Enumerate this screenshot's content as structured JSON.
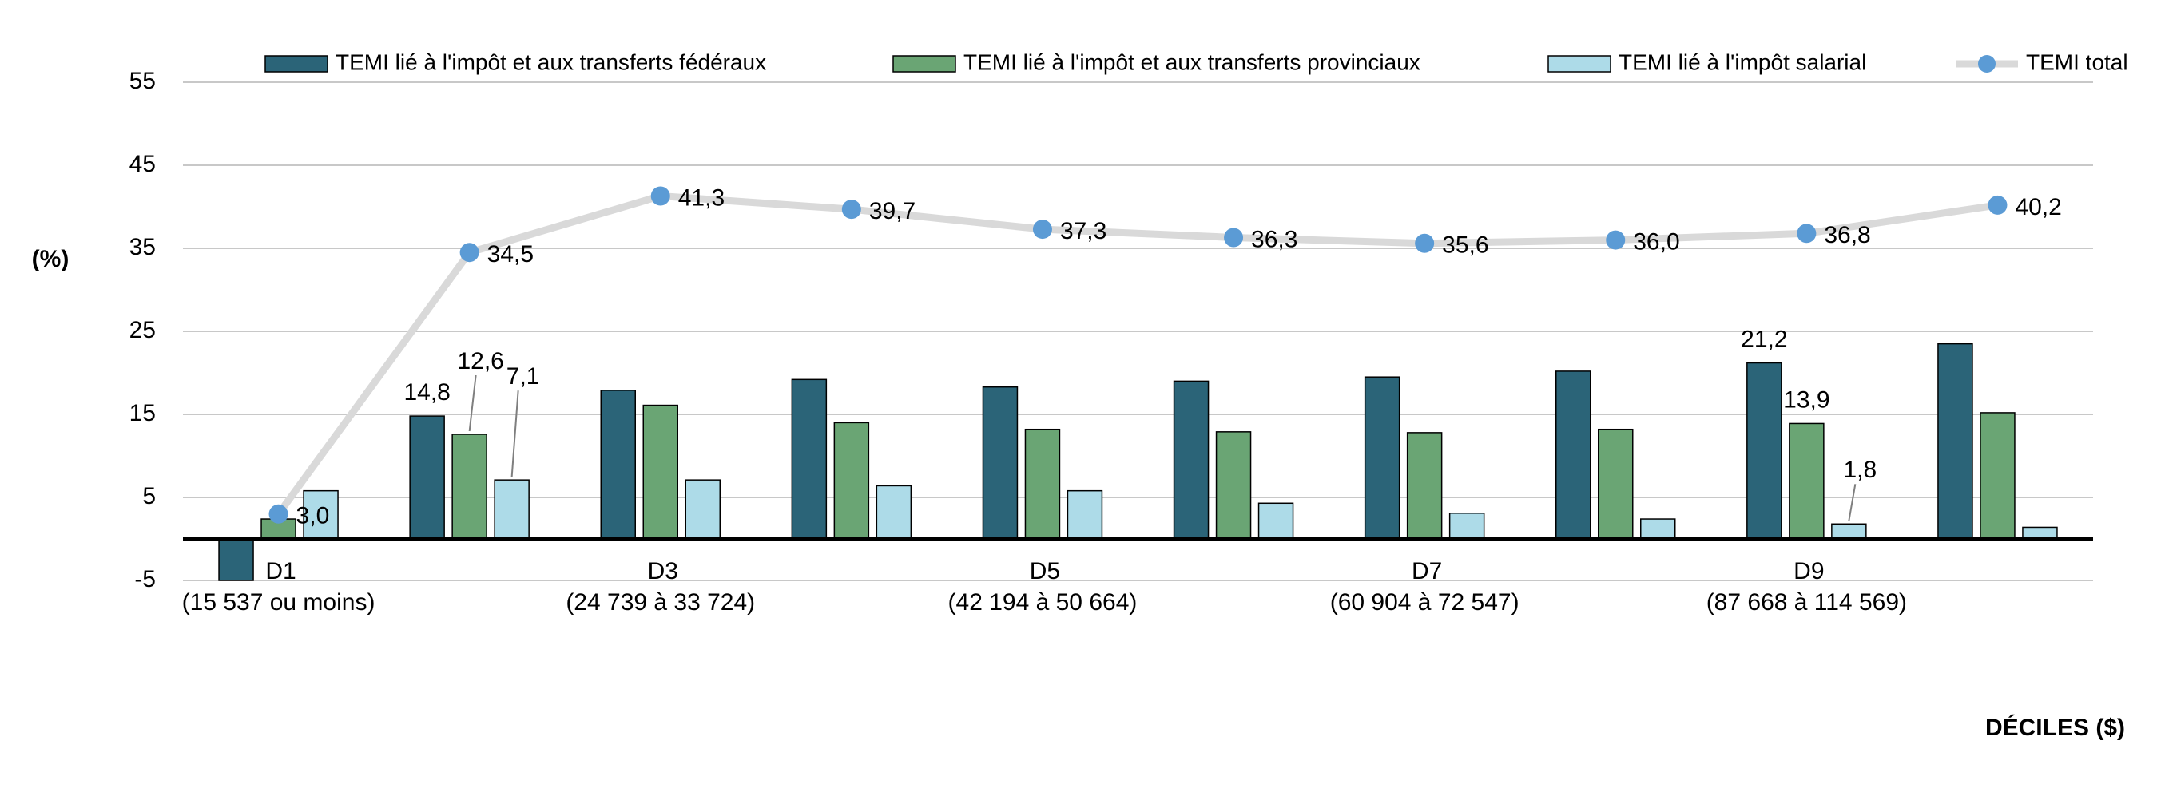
{
  "chart_data": {
    "type": "bar",
    "y_axis_title": "(%)",
    "x_axis_title": "DÉCILES ($)",
    "categories": [
      "D1",
      null,
      "D3",
      null,
      "D5",
      null,
      "D7",
      null,
      "D9",
      null
    ],
    "category_ranges": [
      "(15 537 ou moins)",
      null,
      "(24 739 à 33 724)",
      null,
      "(42 194 à 50 664)",
      null,
      "(60 904 à 72 547)",
      null,
      "(87 668 à 114 569)",
      null
    ],
    "ylim": [
      -5,
      55
    ],
    "yticks": [
      -5,
      5,
      15,
      25,
      35,
      45,
      55
    ],
    "grid": true,
    "legend": "top",
    "series": [
      {
        "name": "TEMI lié à l'impôt et aux transferts fédéraux",
        "type": "bar",
        "color": "#2b6478",
        "values": [
          -5.0,
          14.8,
          17.9,
          19.2,
          18.3,
          19.0,
          19.5,
          20.2,
          21.2,
          23.5
        ],
        "value_labels": [
          null,
          "14,8",
          null,
          null,
          null,
          null,
          null,
          null,
          "21,2",
          null
        ]
      },
      {
        "name": "TEMI lié à l'impôt et aux transferts provinciaux",
        "type": "bar",
        "color": "#6aa574",
        "values": [
          2.4,
          12.6,
          16.1,
          14.0,
          13.2,
          12.9,
          12.8,
          13.2,
          13.9,
          15.2
        ],
        "value_labels": [
          null,
          "12,6",
          null,
          null,
          null,
          null,
          null,
          null,
          "13,9",
          null
        ]
      },
      {
        "name": "TEMI lié à l'impôt salarial",
        "type": "bar",
        "color": "#addbe8",
        "values": [
          5.8,
          7.1,
          7.1,
          6.4,
          5.8,
          4.3,
          3.1,
          2.4,
          1.8,
          1.4
        ],
        "value_labels": [
          null,
          "7,1",
          null,
          null,
          null,
          null,
          null,
          null,
          "1,8",
          null
        ]
      },
      {
        "name": "TEMI total",
        "type": "line",
        "color": "#d9d9d9",
        "marker_color": "#5b9bd5",
        "values": [
          3.0,
          34.5,
          41.3,
          39.7,
          37.3,
          36.3,
          35.6,
          36.0,
          36.8,
          40.2
        ],
        "value_labels": [
          "3,0",
          "34,5",
          "41,3",
          "39,7",
          "37,3",
          "36,3",
          "35,6",
          "36,0",
          "36,8",
          "40,2"
        ]
      }
    ]
  }
}
